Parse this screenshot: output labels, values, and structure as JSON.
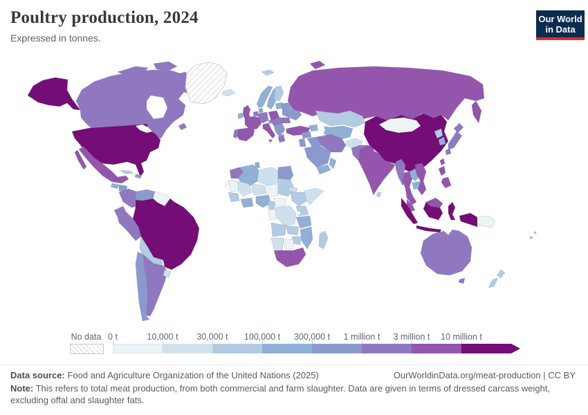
{
  "header": {
    "title": "Poultry production, 2024",
    "subtitle": "Expressed in tonnes."
  },
  "logo": {
    "line1": "Our World",
    "line2": "in Data",
    "bg": "#0d2b4e",
    "accent": "#dc3028"
  },
  "legend": {
    "no_data_label": "No data"
  },
  "footer": {
    "data_source_label": "Data source:",
    "data_source": "Food and Agriculture Organization of the United Nations (2025)",
    "link": "OurWorldinData.org/meat-production | CC BY",
    "note_label": "Note:",
    "note": "This refers to total meat production, from both commercial and farm slaughter. Data are given in terms of dressed carcass weight, excluding offal and slaughter fats."
  },
  "chart_data": {
    "type": "choropleth",
    "title": "Poultry production, 2024",
    "unit": "tonnes",
    "legend_position": "bottom",
    "legend_bins": [
      {
        "key": "c0",
        "label_start": "0 t",
        "color": "#ecf4f6"
      },
      {
        "key": "c1",
        "label_start": "10,000 t",
        "color": "#cfe0ed"
      },
      {
        "key": "c2",
        "label_start": "30,000 t",
        "color": "#b3cbe3"
      },
      {
        "key": "c3",
        "label_start": "100,000 t",
        "color": "#90b0d6"
      },
      {
        "key": "c4",
        "label_start": "300,000 t",
        "color": "#8a9acd"
      },
      {
        "key": "c5",
        "label_start": "1 million t",
        "color": "#8f78c0"
      },
      {
        "key": "c6",
        "label_start": "3 million t",
        "color": "#9455ac"
      },
      {
        "key": "c7",
        "label_start": "10 million t",
        "color": "#740d76"
      }
    ],
    "no_data_color": "hatched",
    "countries": {
      "greenland": "no_data",
      "western-sahara": "no_data",
      "united-states": "c7",
      "canada": "c5",
      "mexico": "c6",
      "guatemala": "c3",
      "honduras": "c4",
      "panama": "c3",
      "cuba": "c2",
      "hispaniola": "c4",
      "colombia": "c5",
      "venezuela": "c4",
      "guyana": "c0",
      "ecuador": "c5",
      "peru": "c5",
      "brazil": "c7",
      "bolivia": "c2",
      "paraguay": "c1",
      "chile": "c4",
      "argentina": "c5",
      "uruguay": "c1",
      "iceland": "c1",
      "svalbard": "c2",
      "united-kingdom": "c6",
      "ireland": "c3",
      "norway": "c3",
      "sweden": "c3",
      "finland": "c2",
      "baltics": "c3",
      "denmark": "c4",
      "germany": "c5",
      "benelux": "c5",
      "france": "c6",
      "spain": "c6",
      "portugal": "c5",
      "italy": "c6",
      "austria": "c4",
      "poland": "c6",
      "czechia-slovakia-hungary": "c5",
      "balkans": "c4",
      "greece": "c5",
      "romania": "c5",
      "ukraine": "c4",
      "belarus": "c4",
      "russia": "c6",
      "turkey": "c6",
      "caucasus": "c3",
      "kazakhstan": "c2",
      "central-asia": "c3",
      "syria": "c4",
      "iraq": "c4",
      "israel-jordan": "c4",
      "saudi-arabia": "c4",
      "yemen": "c3",
      "oman": "c3",
      "iran": "c5",
      "afghanistan": "c1",
      "pakistan": "c5",
      "india": "c6",
      "nepal": "c2",
      "bangladesh": "c3",
      "sri-lanka": "c2",
      "china": "c7",
      "mongolia": "c0",
      "myanmar": "c5",
      "thailand": "c6",
      "laos": "c3",
      "cambodia": "c3",
      "vietnam": "c6",
      "malaysia": "c6",
      "indonesia": "c7",
      "papua-new-guinea": "c0",
      "philippines": "c6",
      "taiwan": "c6",
      "japan": "c5",
      "north-korea": "c2",
      "south-korea": "c3",
      "australia": "c5",
      "new-zealand": "c2",
      "fiji": "c2",
      "morocco": "c5",
      "algeria": "c3",
      "tunisia": "c3",
      "libya": "c1",
      "egypt": "c4",
      "mauritania": "c0",
      "mali": "c1",
      "niger": "c1",
      "chad": "c0",
      "sudan": "c2",
      "eritrea": "c1",
      "ethiopia": "c2",
      "somalia": "c1",
      "senegal-guinea": "c2",
      "ghana-ivory-coast": "c3",
      "nigeria": "c3",
      "cameroon": "c2",
      "central-african-republic": "c0",
      "dr-congo": "c1",
      "congo-gabon": "c0",
      "kenya-uganda": "c2",
      "tanzania": "c3",
      "angola": "c2",
      "zambia": "c2",
      "mozambique": "c3",
      "zimbabwe": "c2",
      "namibia": "c1",
      "botswana": "c0",
      "south-africa": "c6",
      "madagascar": "c2"
    }
  }
}
